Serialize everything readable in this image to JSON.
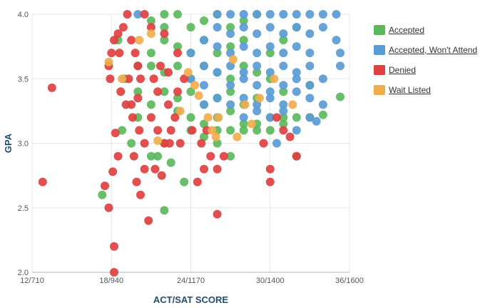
{
  "chart_data": {
    "type": "scatter",
    "xlabel": "ACT/SAT SCORE",
    "ylabel": "GPA",
    "x_ticks": [
      {
        "value": 12,
        "label": "12/710"
      },
      {
        "value": 18,
        "label": "18/940"
      },
      {
        "value": 24,
        "label": "24/1170"
      },
      {
        "value": 30,
        "label": "30/1400"
      },
      {
        "value": 36,
        "label": "36/1600"
      }
    ],
    "y_ticks": [
      {
        "value": 2.0,
        "label": "2.0"
      },
      {
        "value": 2.5,
        "label": "2.5"
      },
      {
        "value": 3.0,
        "label": "3.0"
      },
      {
        "value": 3.5,
        "label": "3.5"
      },
      {
        "value": 4.0,
        "label": "4.0"
      }
    ],
    "xlim": [
      12,
      36
    ],
    "ylim": [
      2.0,
      4.0
    ],
    "grid": true,
    "legend_position": "right",
    "series": [
      {
        "name": "Accepted",
        "color": "#5cb85c",
        "points": [
          [
            22,
            4.0
          ],
          [
            23,
            4.0
          ],
          [
            21,
            3.95
          ],
          [
            22,
            3.9
          ],
          [
            24,
            3.9
          ],
          [
            25,
            3.95
          ],
          [
            26,
            4.0
          ],
          [
            27,
            3.9
          ],
          [
            28,
            3.95
          ],
          [
            29,
            4.0
          ],
          [
            22,
            3.8
          ],
          [
            23,
            3.75
          ],
          [
            24,
            3.7
          ],
          [
            25,
            3.8
          ],
          [
            26,
            3.7
          ],
          [
            27,
            3.75
          ],
          [
            28,
            3.8
          ],
          [
            30,
            3.7
          ],
          [
            31,
            3.8
          ],
          [
            32,
            3.9
          ],
          [
            21,
            3.6
          ],
          [
            22,
            3.55
          ],
          [
            23,
            3.6
          ],
          [
            24,
            3.5
          ],
          [
            25,
            3.6
          ],
          [
            26,
            3.55
          ],
          [
            27,
            3.5
          ],
          [
            28,
            3.6
          ],
          [
            29,
            3.55
          ],
          [
            30,
            3.5
          ],
          [
            22,
            3.4
          ],
          [
            23,
            3.35
          ],
          [
            24,
            3.4
          ],
          [
            25,
            3.3
          ],
          [
            26,
            3.35
          ],
          [
            27,
            3.4
          ],
          [
            28,
            3.3
          ],
          [
            29,
            3.35
          ],
          [
            31,
            3.4
          ],
          [
            33,
            3.45
          ],
          [
            23,
            3.25
          ],
          [
            24,
            3.2
          ],
          [
            25,
            3.15
          ],
          [
            26,
            3.2
          ],
          [
            27,
            3.25
          ],
          [
            28,
            3.15
          ],
          [
            29,
            3.1
          ],
          [
            30,
            3.2
          ],
          [
            31,
            3.15
          ],
          [
            32,
            3.2
          ],
          [
            24,
            3.1
          ],
          [
            25,
            3.05
          ],
          [
            26,
            3.1
          ],
          [
            27,
            3.1
          ],
          [
            28,
            3.1
          ],
          [
            29,
            3.15
          ],
          [
            30,
            3.1
          ],
          [
            31,
            3.2
          ],
          [
            33,
            3.2
          ],
          [
            34,
            3.22
          ],
          [
            19,
            3.5
          ],
          [
            20,
            3.4
          ],
          [
            20,
            3.2
          ],
          [
            21,
            3.3
          ],
          [
            18.5,
            3.8
          ],
          [
            18.8,
            3.1
          ],
          [
            19.5,
            3.0
          ],
          [
            21.5,
            2.9
          ],
          [
            22.5,
            2.85
          ],
          [
            23.5,
            2.7
          ],
          [
            27,
            2.9
          ],
          [
            32,
            2.9
          ],
          [
            26,
            3.0
          ],
          [
            22,
            3.0
          ],
          [
            21,
            2.9
          ],
          [
            17.3,
            2.6
          ],
          [
            22,
            2.48
          ],
          [
            35.3,
            3.36
          ],
          [
            21,
            3.7
          ],
          [
            20,
            3.6
          ]
        ]
      },
      {
        "name": "Accepted, Won't Attend",
        "color": "#5b9bd5",
        "points": [
          [
            26,
            4.0
          ],
          [
            27,
            4.0
          ],
          [
            28,
            4.0
          ],
          [
            29,
            4.0
          ],
          [
            30,
            4.0
          ],
          [
            31,
            4.0
          ],
          [
            32,
            4.0
          ],
          [
            33,
            4.0
          ],
          [
            34,
            4.0
          ],
          [
            35,
            4.0
          ],
          [
            26,
            3.9
          ],
          [
            27,
            3.85
          ],
          [
            28,
            3.9
          ],
          [
            29,
            3.85
          ],
          [
            30,
            3.9
          ],
          [
            31,
            3.85
          ],
          [
            32,
            3.9
          ],
          [
            33,
            3.85
          ],
          [
            34,
            3.9
          ],
          [
            35,
            3.8
          ],
          [
            25,
            3.8
          ],
          [
            26,
            3.75
          ],
          [
            27,
            3.7
          ],
          [
            28,
            3.75
          ],
          [
            29,
            3.7
          ],
          [
            30,
            3.75
          ],
          [
            31,
            3.7
          ],
          [
            32,
            3.75
          ],
          [
            33,
            3.7
          ],
          [
            35.3,
            3.7
          ],
          [
            25,
            3.6
          ],
          [
            26,
            3.55
          ],
          [
            27,
            3.6
          ],
          [
            28,
            3.55
          ],
          [
            29,
            3.6
          ],
          [
            30,
            3.55
          ],
          [
            31,
            3.6
          ],
          [
            32,
            3.55
          ],
          [
            33,
            3.6
          ],
          [
            35.3,
            3.6
          ],
          [
            24,
            3.5
          ],
          [
            25,
            3.45
          ],
          [
            27,
            3.45
          ],
          [
            28,
            3.5
          ],
          [
            29,
            3.45
          ],
          [
            30,
            3.4
          ],
          [
            31,
            3.45
          ],
          [
            32,
            3.5
          ],
          [
            33,
            3.45
          ],
          [
            34,
            3.5
          ],
          [
            26,
            3.35
          ],
          [
            27,
            3.3
          ],
          [
            28,
            3.35
          ],
          [
            29,
            3.3
          ],
          [
            30,
            3.35
          ],
          [
            31,
            3.3
          ],
          [
            32,
            3.4
          ],
          [
            33,
            3.35
          ],
          [
            25,
            3.3
          ],
          [
            34,
            3.3
          ],
          [
            28,
            3.2
          ],
          [
            29,
            3.25
          ],
          [
            30,
            3.2
          ],
          [
            31,
            3.25
          ],
          [
            33,
            3.2
          ],
          [
            32,
            3.1
          ],
          [
            30.5,
            3.0
          ],
          [
            20,
            4.0
          ],
          [
            24,
            3.7
          ],
          [
            33.5,
            3.17
          ]
        ]
      },
      {
        "name": "Denied",
        "color": "#e04040",
        "points": [
          [
            12.8,
            2.7
          ],
          [
            13.5,
            3.43
          ],
          [
            17.5,
            2.67
          ],
          [
            17.8,
            2.5
          ],
          [
            18.2,
            2.2
          ],
          [
            18.2,
            2.0
          ],
          [
            18.5,
            2.9
          ],
          [
            18.1,
            2.78
          ],
          [
            18.3,
            3.08
          ],
          [
            17.9,
            3.5
          ],
          [
            18,
            3.7
          ],
          [
            18.2,
            3.8
          ],
          [
            18.5,
            3.85
          ],
          [
            18.9,
            3.9
          ],
          [
            19.2,
            4.0
          ],
          [
            19.5,
            3.8
          ],
          [
            19.8,
            3.7
          ],
          [
            20,
            3.6
          ],
          [
            20.2,
            3.5
          ],
          [
            19.3,
            3.5
          ],
          [
            18.7,
            3.4
          ],
          [
            19.1,
            3.3
          ],
          [
            19.6,
            3.2
          ],
          [
            20.1,
            3.1
          ],
          [
            20.5,
            3.0
          ],
          [
            19.7,
            2.9
          ],
          [
            20.5,
            2.8
          ],
          [
            19.9,
            2.7
          ],
          [
            20.2,
            2.6
          ],
          [
            20.8,
            2.4
          ],
          [
            21,
            3.2
          ],
          [
            21.5,
            3.1
          ],
          [
            22,
            3.0
          ],
          [
            22.5,
            3.1
          ],
          [
            21.2,
            3.5
          ],
          [
            21.7,
            3.6
          ],
          [
            22.3,
            3.3
          ],
          [
            22.8,
            3.2
          ],
          [
            23,
            3.4
          ],
          [
            23.5,
            3.5
          ],
          [
            21.3,
            2.8
          ],
          [
            21.8,
            2.75
          ],
          [
            22.4,
            3.0
          ],
          [
            23.2,
            3.0
          ],
          [
            24.1,
            3.1
          ],
          [
            24.5,
            2.7
          ],
          [
            25,
            2.8
          ],
          [
            25.5,
            2.9
          ],
          [
            26,
            2.8
          ],
          [
            26.5,
            2.9
          ],
          [
            26,
            2.45
          ],
          [
            24.8,
            3.0
          ],
          [
            25.2,
            3.1
          ],
          [
            30,
            2.7
          ],
          [
            30,
            2.8
          ],
          [
            31,
            3.1
          ],
          [
            31.5,
            3.05
          ],
          [
            32,
            2.9
          ],
          [
            29.5,
            3.0
          ],
          [
            30.5,
            3.2
          ],
          [
            20.5,
            4.0
          ],
          [
            21,
            3.9
          ],
          [
            22,
            3.85
          ],
          [
            19.5,
            3.3
          ],
          [
            20,
            3.35
          ],
          [
            21.5,
            3.4
          ],
          [
            22.3,
            3.55
          ],
          [
            23,
            3.7
          ],
          [
            17.8,
            3.6
          ],
          [
            18.6,
            3.7
          ]
        ]
      },
      {
        "name": "Wait Listed",
        "color": "#f0ad4e",
        "points": [
          [
            17.8,
            3.63
          ],
          [
            18.8,
            3.5
          ],
          [
            20.1,
            3.8
          ],
          [
            21,
            3.85
          ],
          [
            21.5,
            3.02
          ],
          [
            23.8,
            3.55
          ],
          [
            24.3,
            3.45
          ],
          [
            24.6,
            3.37
          ],
          [
            25.3,
            3.2
          ],
          [
            25.6,
            3.1
          ],
          [
            26.1,
            3.2
          ],
          [
            27.5,
            3.05
          ],
          [
            28.1,
            3.3
          ],
          [
            28.6,
            3.15
          ],
          [
            29.2,
            3.35
          ],
          [
            31.7,
            3.3
          ],
          [
            25.9,
            3.05
          ],
          [
            23.2,
            3.25
          ],
          [
            27.2,
            3.65
          ],
          [
            30.3,
            3.5
          ]
        ]
      }
    ]
  }
}
